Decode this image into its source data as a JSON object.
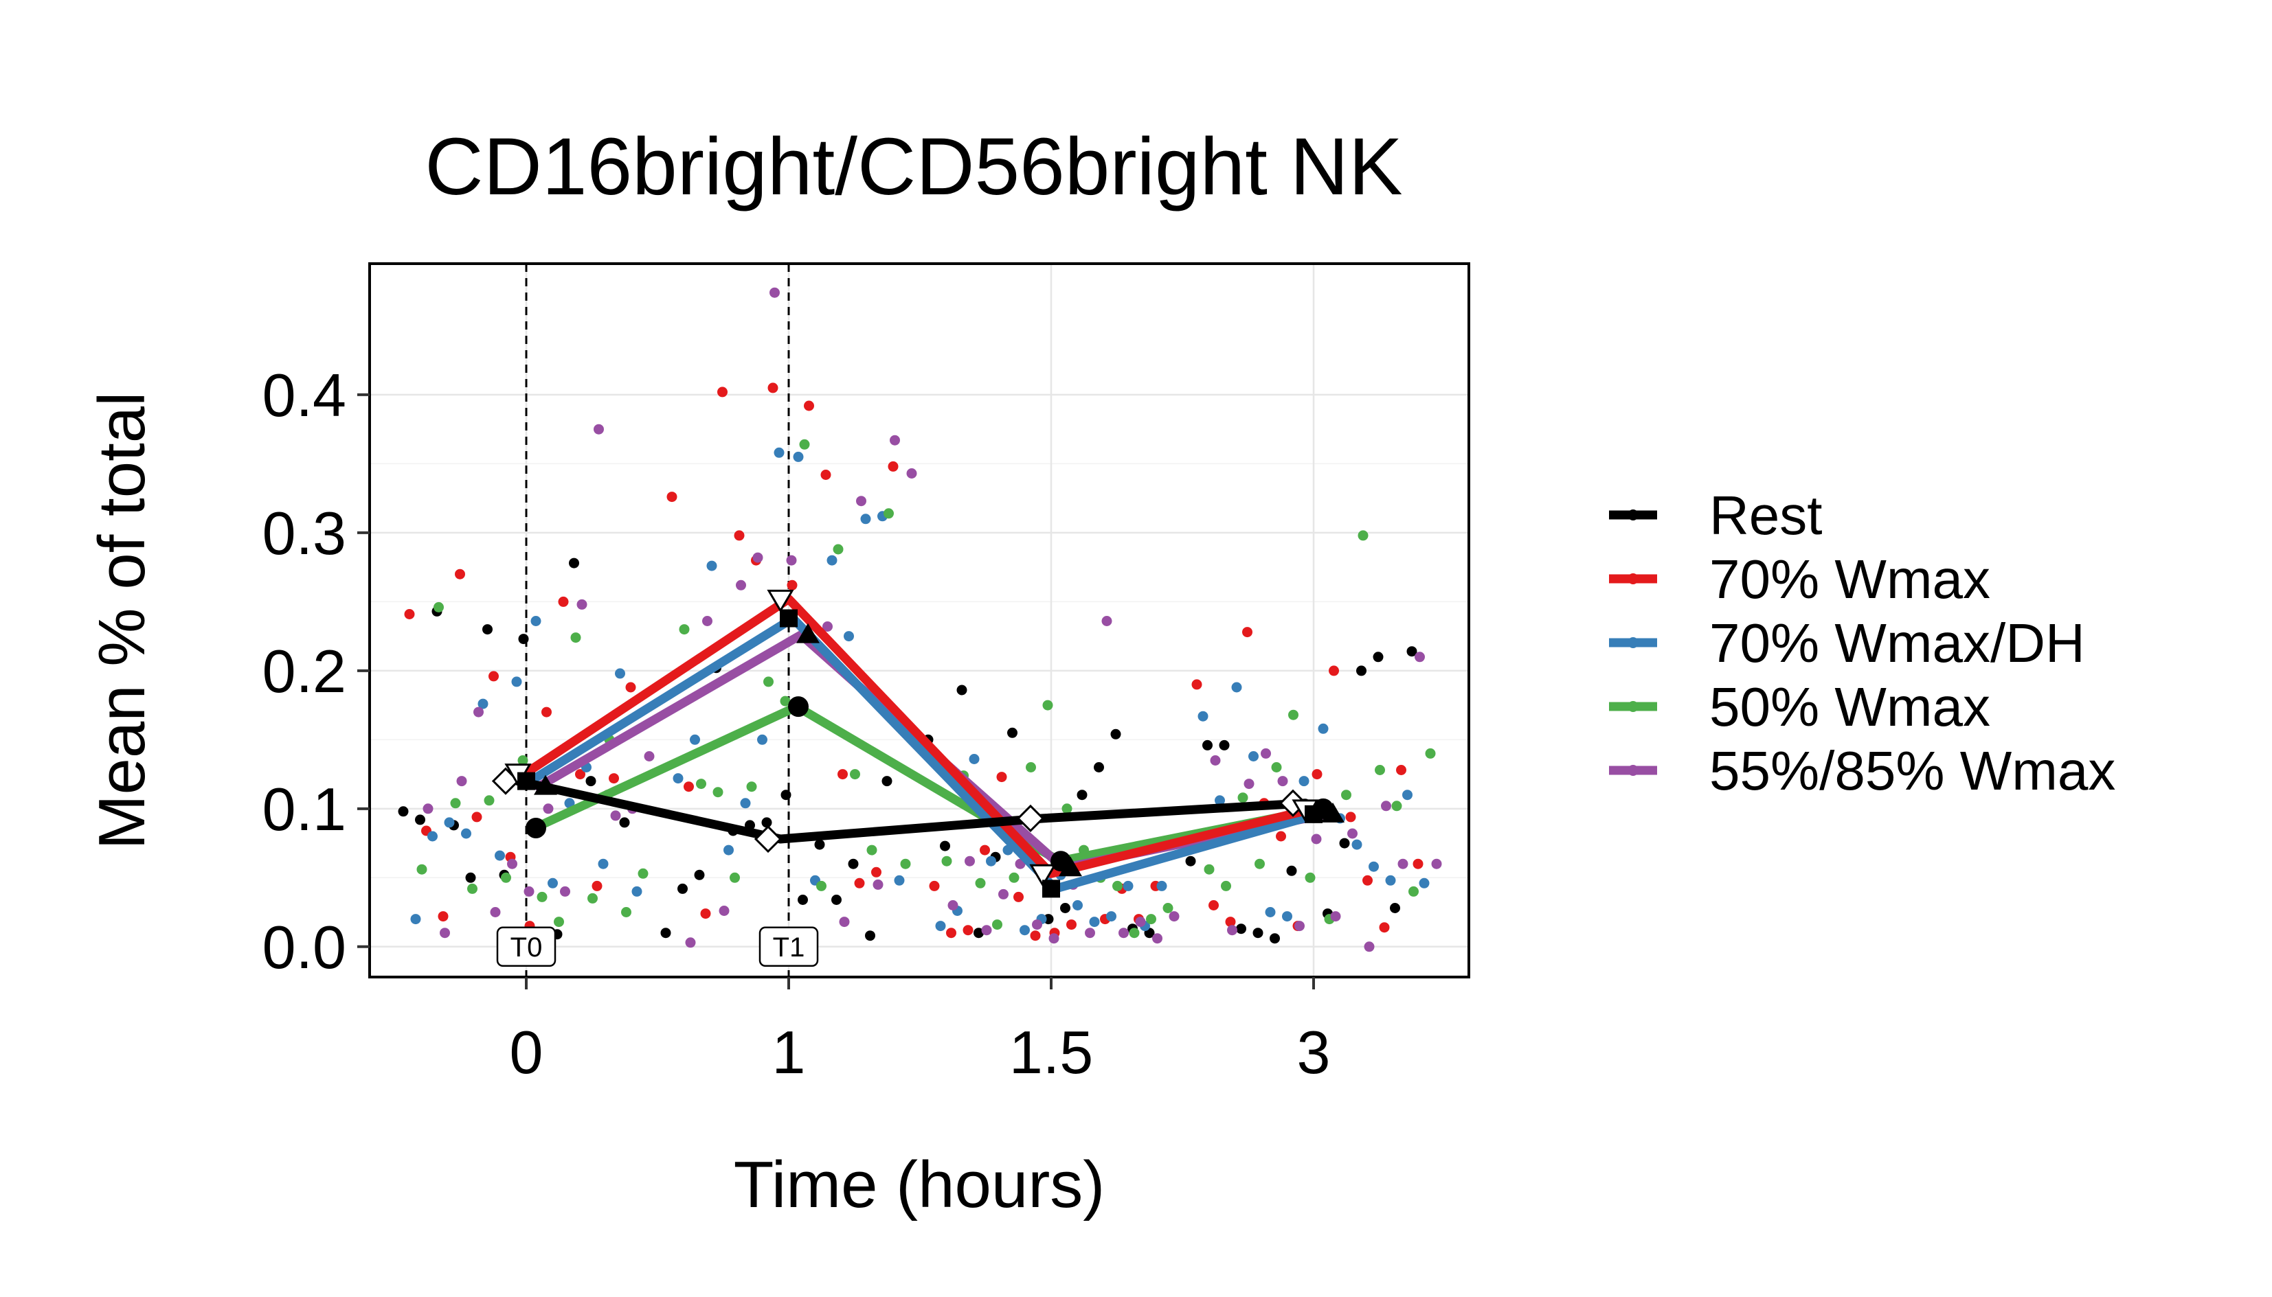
{
  "chart_data": {
    "type": "line",
    "title": "CD16bright/CD56bright NK",
    "xlabel": "Time (hours)",
    "ylabel": "Mean % of total",
    "categories": [
      "0",
      "1",
      "1.5",
      "3"
    ],
    "y_ticks": [
      "0.0",
      "0.1",
      "0.2",
      "0.3",
      "0.4"
    ],
    "ylim": [
      -0.022,
      0.495
    ],
    "grid": true,
    "legend_position": "right",
    "time_markers": [
      {
        "label": "T0",
        "x": "0"
      },
      {
        "label": "T1",
        "x": "1"
      }
    ],
    "series": [
      {
        "name": "Rest",
        "color": "#000000",
        "marker": "diamond-open",
        "values": [
          0.12,
          0.078,
          0.093,
          0.104
        ]
      },
      {
        "name": "70% Wmax",
        "color": "#E41A1C",
        "marker": "triangle-down-open",
        "values": [
          0.126,
          0.252,
          0.053,
          0.1
        ]
      },
      {
        "name": "70% Wmax/DH",
        "color": "#377EB8",
        "marker": "square",
        "values": [
          0.12,
          0.238,
          0.042,
          0.096
        ]
      },
      {
        "name": "50% Wmax",
        "color": "#4DAF4A",
        "marker": "circle",
        "values": [
          0.086,
          0.174,
          0.062,
          0.1
        ]
      },
      {
        "name": "55%/85% Wmax",
        "color": "#984EA3",
        "marker": "triangle-up",
        "values": [
          0.116,
          0.226,
          0.057,
          0.096
        ]
      }
    ],
    "points": [
      {
        "group": 0,
        "x": 0,
        "ys": [
          0.098,
          0.23,
          0.278,
          0.092,
          0.052,
          0.12,
          0.243,
          0.223,
          0.11,
          0.088,
          0.085,
          0.09,
          0.05,
          0.009
        ]
      },
      {
        "group": 1,
        "x": 0,
        "ys": [
          0.27,
          0.17,
          0.188,
          0.094,
          0.25,
          0.241,
          0.196,
          0.125,
          0.084,
          0.065,
          0.044,
          0.022,
          0.015,
          0.122
        ]
      },
      {
        "group": 2,
        "x": 0,
        "ys": [
          0.192,
          0.06,
          0.09,
          0.236,
          0.198,
          0.082,
          0.046,
          0.04,
          0.176,
          0.104,
          0.02,
          0.066,
          0.13,
          0.08
        ]
      },
      {
        "group": 3,
        "x": 0,
        "ys": [
          0.224,
          0.056,
          0.05,
          0.035,
          0.246,
          0.135,
          0.15,
          0.104,
          0.036,
          0.025,
          0.042,
          0.018,
          0.053,
          0.106
        ]
      },
      {
        "group": 4,
        "x": 0,
        "ys": [
          0.1,
          0.17,
          0.04,
          0.138,
          0.025,
          0.248,
          0.1,
          0.06,
          0.375,
          0.01,
          0.04,
          0.095,
          0.12,
          0.1
        ]
      },
      {
        "group": 0,
        "x": 1,
        "ys": [
          0.01,
          0.088,
          0.034,
          0.042,
          0.09,
          0.06,
          0.052,
          0.11,
          0.008,
          0.202,
          0.034,
          0.12,
          0.084,
          0.074
        ]
      },
      {
        "group": 1,
        "x": 1,
        "ys": [
          0.402,
          0.392,
          0.348,
          0.298,
          0.342,
          0.326,
          0.28,
          0.125,
          0.116,
          0.405,
          0.046,
          0.024,
          0.262,
          0.054
        ]
      },
      {
        "group": 2,
        "x": 1,
        "ys": [
          0.358,
          0.31,
          0.276,
          0.355,
          0.312,
          0.07,
          0.048,
          0.048,
          0.104,
          0.28,
          0.122,
          0.15,
          0.225,
          0.15
        ]
      },
      {
        "group": 3,
        "x": 1,
        "ys": [
          0.288,
          0.23,
          0.192,
          0.125,
          0.118,
          0.178,
          0.07,
          0.112,
          0.364,
          0.314,
          0.05,
          0.044,
          0.06,
          0.116
        ]
      },
      {
        "group": 4,
        "x": 1,
        "ys": [
          0.367,
          0.262,
          0.232,
          0.343,
          0.282,
          0.018,
          0.003,
          0.474,
          0.323,
          0.236,
          0.28,
          0.045,
          0.026,
          0.004
        ]
      },
      {
        "group": 0,
        "x": 2,
        "ys": [
          0.15,
          0.155,
          0.13,
          0.073,
          0.066,
          0.154,
          0.186,
          0.02,
          0.013,
          0.01,
          0.028,
          0.01,
          0.065,
          0.11
        ]
      },
      {
        "group": 1,
        "x": 2,
        "ys": [
          0.07,
          0.016,
          0.044,
          0.123,
          0.065,
          0.044,
          0.036,
          0.02,
          0.01,
          0.008,
          0.042,
          0.012,
          0.01,
          0.02
        ]
      },
      {
        "group": 2,
        "x": 2,
        "ys": [
          0.02,
          0.044,
          0.136,
          0.052,
          0.015,
          0.062,
          0.03,
          0.044,
          0.07,
          0.018,
          0.015,
          0.012,
          0.022,
          0.026
        ]
      },
      {
        "group": 3,
        "x": 2,
        "ys": [
          0.05,
          0.062,
          0.13,
          0.044,
          0.124,
          0.175,
          0.01,
          0.046,
          0.1,
          0.02,
          0.016,
          0.07,
          0.028,
          0.05
        ]
      },
      {
        "group": 4,
        "x": 2,
        "ys": [
          0.006,
          0.038,
          0.01,
          0.022,
          0.06,
          0.236,
          0.03,
          0.016,
          0.01,
          0.062,
          0.006,
          0.018,
          0.012,
          0.045
        ]
      },
      {
        "group": 0,
        "x": 3,
        "ys": [
          0.062,
          0.006,
          0.2,
          0.146,
          0.055,
          0.21,
          0.146,
          0.1,
          0.028,
          0.013,
          0.024,
          0.214,
          0.01,
          0.075
        ]
      },
      {
        "group": 1,
        "x": 3,
        "ys": [
          0.228,
          0.2,
          0.06,
          0.104,
          0.094,
          0.19,
          0.08,
          0.048,
          0.03,
          0.015,
          0.014,
          0.018,
          0.125,
          0.128
        ]
      },
      {
        "group": 2,
        "x": 3,
        "ys": [
          0.12,
          0.048,
          0.188,
          0.158,
          0.11,
          0.138,
          0.093,
          0.046,
          0.025,
          0.074,
          0.167,
          0.022,
          0.058,
          0.106
        ]
      },
      {
        "group": 3,
        "x": 3,
        "ys": [
          0.298,
          0.056,
          0.168,
          0.128,
          0.044,
          0.05,
          0.102,
          0.108,
          0.02,
          0.04,
          0.06,
          0.11,
          0.14,
          0.13
        ]
      },
      {
        "group": 4,
        "x": 3,
        "ys": [
          0.21,
          0.14,
          0.082,
          0.06,
          0.12,
          0.0,
          0.135,
          0.015,
          0.102,
          0.012,
          0.078,
          0.06,
          0.118,
          0.022
        ]
      }
    ]
  }
}
